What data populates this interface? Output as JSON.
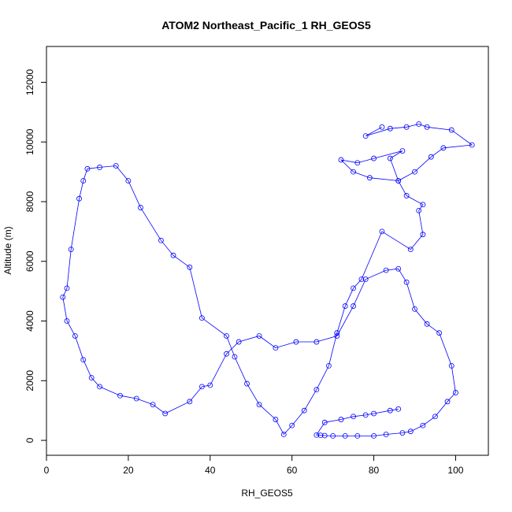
{
  "chart_data": {
    "type": "line",
    "title": "ATOM2 Northeast_Pacific_1 RH_GEOS5",
    "xlabel": "RH_GEOS5",
    "ylabel": "Altitude (m)",
    "xlim": [
      0,
      108
    ],
    "ylim": [
      -500,
      13200
    ],
    "x_ticks": [
      0,
      20,
      40,
      60,
      80,
      100
    ],
    "y_ticks": [
      0,
      2000,
      4000,
      6000,
      8000,
      10000,
      12000
    ],
    "marker": "open-circle",
    "series_color": "#0000ff",
    "series": [
      {
        "x": [
          82,
          78,
          84,
          88,
          91,
          93,
          99,
          104,
          97,
          94,
          90,
          86,
          84,
          87,
          80,
          76,
          72,
          75,
          79,
          86,
          88,
          92,
          91,
          92,
          89,
          82,
          77,
          75,
          73,
          71,
          69,
          66,
          63,
          60,
          58,
          56,
          52,
          49,
          46,
          44,
          38,
          35,
          31,
          28,
          23,
          20,
          17,
          13,
          10,
          9,
          8,
          6,
          5,
          4,
          5,
          7,
          9,
          11,
          13,
          18,
          22,
          26,
          29,
          35,
          38,
          40,
          44,
          47,
          52,
          56,
          61,
          66,
          71,
          75,
          78,
          83,
          86,
          88,
          90,
          93,
          96,
          99,
          100,
          98,
          95,
          92,
          89,
          87,
          83,
          80,
          76,
          73,
          70,
          68,
          67,
          66,
          68,
          72,
          75,
          78,
          80,
          84,
          86
        ],
        "y": [
          10500,
          10200,
          10450,
          10500,
          10600,
          10500,
          10400,
          9900,
          9800,
          9500,
          9000,
          8700,
          9450,
          9700,
          9450,
          9300,
          9400,
          9000,
          8800,
          8700,
          8200,
          7900,
          7700,
          6900,
          6400,
          7000,
          5400,
          5100,
          4500,
          3600,
          2500,
          1700,
          1000,
          500,
          200,
          700,
          1200,
          1900,
          2800,
          3500,
          4100,
          5800,
          6200,
          6700,
          7800,
          8700,
          9200,
          9150,
          9100,
          8700,
          8100,
          6400,
          5100,
          4800,
          4000,
          3500,
          2700,
          2100,
          1800,
          1500,
          1400,
          1200,
          900,
          1300,
          1800,
          1850,
          2900,
          3300,
          3500,
          3100,
          3300,
          3300,
          3500,
          4500,
          5400,
          5700,
          5750,
          5300,
          4400,
          3900,
          3600,
          2500,
          1600,
          1300,
          800,
          500,
          300,
          250,
          200,
          150,
          150,
          150,
          150,
          160,
          170,
          180,
          600,
          700,
          800,
          850,
          900,
          1000,
          1050
        ]
      }
    ]
  }
}
